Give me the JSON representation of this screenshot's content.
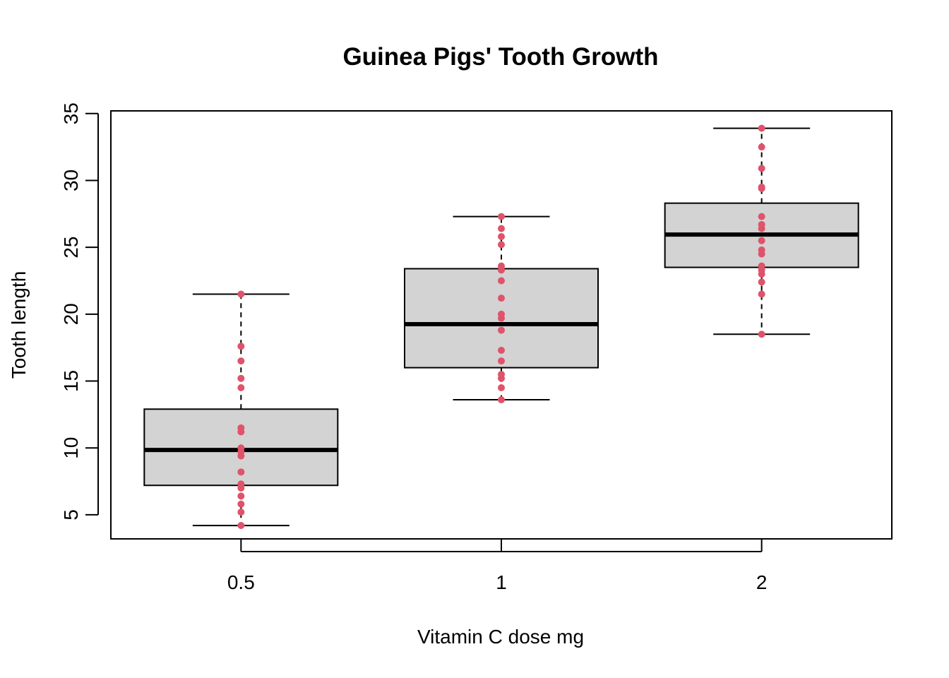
{
  "chart_data": {
    "type": "boxplot",
    "title": "Guinea Pigs' Tooth Growth",
    "xlabel": "Vitamin C dose mg",
    "ylabel": "Tooth length",
    "categories": [
      "0.5",
      "1",
      "2"
    ],
    "yticks": [
      5,
      10,
      15,
      20,
      25,
      30,
      35
    ],
    "ylim": [
      3.2,
      35.2
    ],
    "grid": false,
    "box_fill": "#D3D3D3",
    "point_color": "#DF536B",
    "boxes": [
      {
        "category": "0.5",
        "whisker_low": 4.2,
        "q1": 7.2,
        "median": 9.85,
        "q3": 12.9,
        "whisker_high": 21.5
      },
      {
        "category": "1",
        "whisker_low": 13.6,
        "q1": 16.0,
        "median": 19.25,
        "q3": 23.4,
        "whisker_high": 27.3
      },
      {
        "category": "2",
        "whisker_low": 18.5,
        "q1": 23.5,
        "median": 25.95,
        "q3": 28.3,
        "whisker_high": 33.9
      }
    ],
    "points": [
      {
        "category": "0.5",
        "values": [
          4.2,
          5.2,
          5.8,
          6.4,
          7.0,
          7.3,
          8.2,
          9.4,
          9.7,
          10.0,
          11.2,
          11.5,
          14.5,
          15.2,
          16.5,
          17.6,
          21.5
        ]
      },
      {
        "category": "1",
        "values": [
          13.6,
          14.5,
          15.2,
          15.5,
          16.5,
          17.3,
          18.8,
          19.7,
          20.0,
          21.2,
          22.5,
          23.3,
          23.6,
          25.2,
          25.8,
          26.4,
          27.3
        ]
      },
      {
        "category": "2",
        "values": [
          18.5,
          21.5,
          22.4,
          23.0,
          23.3,
          23.6,
          24.5,
          24.8,
          25.5,
          26.4,
          26.7,
          27.3,
          29.4,
          29.5,
          30.9,
          32.5,
          33.9
        ]
      }
    ]
  }
}
